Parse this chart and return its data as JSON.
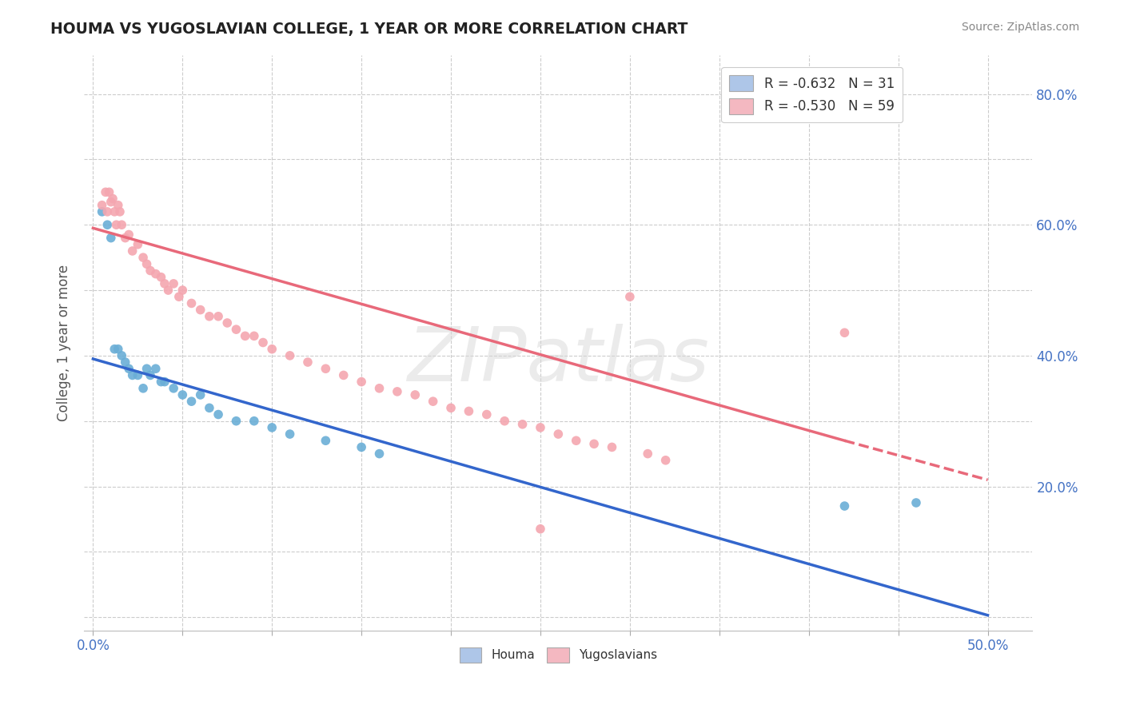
{
  "title": "HOUMA VS YUGOSLAVIAN COLLEGE, 1 YEAR OR MORE CORRELATION CHART",
  "source_text": "Source: ZipAtlas.com",
  "ylabel": "College, 1 year or more",
  "xlim": [
    -0.005,
    0.525
  ],
  "ylim": [
    -0.02,
    0.86
  ],
  "x_ticks": [
    0.0,
    0.05,
    0.1,
    0.15,
    0.2,
    0.25,
    0.3,
    0.35,
    0.4,
    0.45,
    0.5
  ],
  "y_ticks": [
    0.0,
    0.1,
    0.2,
    0.3,
    0.4,
    0.5,
    0.6,
    0.7,
    0.8
  ],
  "houma_color": "#6aaed6",
  "yugo_color": "#f4a6b0",
  "houma_reg_color": "#3366cc",
  "yugo_reg_color": "#e8697a",
  "grid_color": "#cccccc",
  "bg_color": "#ffffff",
  "tick_label_color": "#4472c4",
  "watermark_color": "#d8d8d8",
  "legend_box_houma": "#aec6e8",
  "legend_box_yugo": "#f4b8c1",
  "houma_reg": [
    0.0,
    0.395,
    0.5,
    0.003
  ],
  "yugo_reg_solid": [
    0.0,
    0.595,
    0.42,
    0.27
  ],
  "yugo_reg_dash": [
    0.42,
    0.27,
    0.5,
    0.21
  ],
  "houma_points": [
    [
      0.005,
      0.62
    ],
    [
      0.008,
      0.6
    ],
    [
      0.01,
      0.58
    ],
    [
      0.012,
      0.41
    ],
    [
      0.014,
      0.41
    ],
    [
      0.016,
      0.4
    ],
    [
      0.018,
      0.39
    ],
    [
      0.02,
      0.38
    ],
    [
      0.022,
      0.37
    ],
    [
      0.025,
      0.37
    ],
    [
      0.028,
      0.35
    ],
    [
      0.03,
      0.38
    ],
    [
      0.032,
      0.37
    ],
    [
      0.035,
      0.38
    ],
    [
      0.038,
      0.36
    ],
    [
      0.04,
      0.36
    ],
    [
      0.045,
      0.35
    ],
    [
      0.05,
      0.34
    ],
    [
      0.055,
      0.33
    ],
    [
      0.06,
      0.34
    ],
    [
      0.065,
      0.32
    ],
    [
      0.07,
      0.31
    ],
    [
      0.08,
      0.3
    ],
    [
      0.09,
      0.3
    ],
    [
      0.1,
      0.29
    ],
    [
      0.11,
      0.28
    ],
    [
      0.13,
      0.27
    ],
    [
      0.15,
      0.26
    ],
    [
      0.16,
      0.25
    ],
    [
      0.42,
      0.17
    ],
    [
      0.46,
      0.175
    ]
  ],
  "yugo_points": [
    [
      0.005,
      0.63
    ],
    [
      0.007,
      0.65
    ],
    [
      0.008,
      0.62
    ],
    [
      0.009,
      0.65
    ],
    [
      0.01,
      0.635
    ],
    [
      0.011,
      0.64
    ],
    [
      0.012,
      0.62
    ],
    [
      0.013,
      0.6
    ],
    [
      0.014,
      0.63
    ],
    [
      0.015,
      0.62
    ],
    [
      0.016,
      0.6
    ],
    [
      0.018,
      0.58
    ],
    [
      0.02,
      0.585
    ],
    [
      0.022,
      0.56
    ],
    [
      0.025,
      0.57
    ],
    [
      0.028,
      0.55
    ],
    [
      0.03,
      0.54
    ],
    [
      0.032,
      0.53
    ],
    [
      0.035,
      0.525
    ],
    [
      0.038,
      0.52
    ],
    [
      0.04,
      0.51
    ],
    [
      0.042,
      0.5
    ],
    [
      0.045,
      0.51
    ],
    [
      0.048,
      0.49
    ],
    [
      0.05,
      0.5
    ],
    [
      0.055,
      0.48
    ],
    [
      0.06,
      0.47
    ],
    [
      0.065,
      0.46
    ],
    [
      0.07,
      0.46
    ],
    [
      0.075,
      0.45
    ],
    [
      0.08,
      0.44
    ],
    [
      0.085,
      0.43
    ],
    [
      0.09,
      0.43
    ],
    [
      0.095,
      0.42
    ],
    [
      0.1,
      0.41
    ],
    [
      0.11,
      0.4
    ],
    [
      0.12,
      0.39
    ],
    [
      0.13,
      0.38
    ],
    [
      0.14,
      0.37
    ],
    [
      0.15,
      0.36
    ],
    [
      0.16,
      0.35
    ],
    [
      0.17,
      0.345
    ],
    [
      0.18,
      0.34
    ],
    [
      0.19,
      0.33
    ],
    [
      0.2,
      0.32
    ],
    [
      0.21,
      0.315
    ],
    [
      0.22,
      0.31
    ],
    [
      0.23,
      0.3
    ],
    [
      0.24,
      0.295
    ],
    [
      0.25,
      0.29
    ],
    [
      0.26,
      0.28
    ],
    [
      0.27,
      0.27
    ],
    [
      0.28,
      0.265
    ],
    [
      0.29,
      0.26
    ],
    [
      0.3,
      0.49
    ],
    [
      0.31,
      0.25
    ],
    [
      0.32,
      0.24
    ],
    [
      0.42,
      0.435
    ],
    [
      0.25,
      0.135
    ]
  ]
}
